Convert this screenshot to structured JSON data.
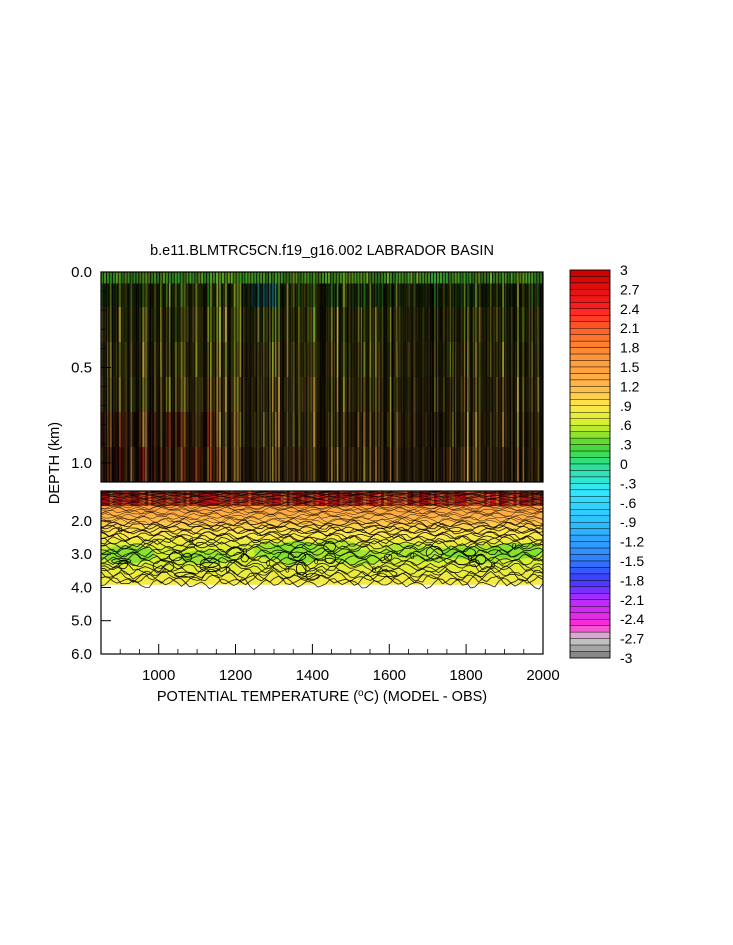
{
  "chart_data": {
    "type": "heatmap",
    "title": "b.e11.BLMTRC5CN.f19_g16.002 LABRADOR BASIN",
    "xlabel": {
      "prefix": "POTENTIAL TEMPERATURE (",
      "sup": "o",
      "suffix": "C) (MODEL - OBS)"
    },
    "ylabel": "DEPTH (km)",
    "x_ticks": [
      "1000",
      "1200",
      "1400",
      "1600",
      "1800",
      "2000"
    ],
    "x_tick_values": [
      1000,
      1200,
      1400,
      1600,
      1800,
      2000
    ],
    "xlim": [
      850,
      2000
    ],
    "upper_panel": {
      "ylim": [
        0.0,
        1.1
      ],
      "y_ticks": [
        "0.0",
        "0.5",
        "1.0"
      ],
      "y_tick_values": [
        0.0,
        0.5,
        1.0
      ]
    },
    "lower_panel": {
      "ylim": [
        1.1,
        6.0
      ],
      "y_ticks": [
        "2.0",
        "3.0",
        "4.0",
        "5.0",
        "6.0"
      ],
      "y_tick_values": [
        2.0,
        3.0,
        4.0,
        5.0,
        6.0
      ],
      "data_bottom_depth": 3.9
    },
    "colorbar": {
      "labels": [
        "3",
        "2.7",
        "2.4",
        "2.1",
        "1.8",
        "1.5",
        "1.2",
        ".9",
        ".6",
        ".3",
        "0",
        "-.3",
        "-.6",
        "-.9",
        "-1.2",
        "-1.5",
        "-1.8",
        "-2.1",
        "-2.4",
        "-2.7",
        "-3"
      ],
      "label_values": [
        3,
        2.7,
        2.4,
        2.1,
        1.8,
        1.5,
        1.2,
        0.9,
        0.6,
        0.3,
        0,
        -0.3,
        -0.6,
        -0.9,
        -1.2,
        -1.5,
        -1.8,
        -2.1,
        -2.4,
        -2.7,
        -3
      ],
      "vmin": -3,
      "vmax": 3
    },
    "depth_profile_approx": [
      {
        "depth": 0.0,
        "value": 0.3
      },
      {
        "depth": 0.25,
        "value": 0.7
      },
      {
        "depth": 0.6,
        "value": 0.9
      },
      {
        "depth": 1.0,
        "value": 1.1
      },
      {
        "depth": 1.2,
        "value": 2.0
      },
      {
        "depth": 1.6,
        "value": 1.5
      },
      {
        "depth": 2.2,
        "value": 1.0
      },
      {
        "depth": 2.6,
        "value": 0.8
      },
      {
        "depth": 3.0,
        "value": 0.6
      },
      {
        "depth": 3.5,
        "value": 0.75
      },
      {
        "depth": 3.9,
        "value": 0.85
      }
    ],
    "contour_labels": [
      "0",
      "0",
      "0",
      "0",
      "0",
      "0",
      "0",
      "0",
      "0",
      "0",
      "0",
      "0"
    ]
  }
}
